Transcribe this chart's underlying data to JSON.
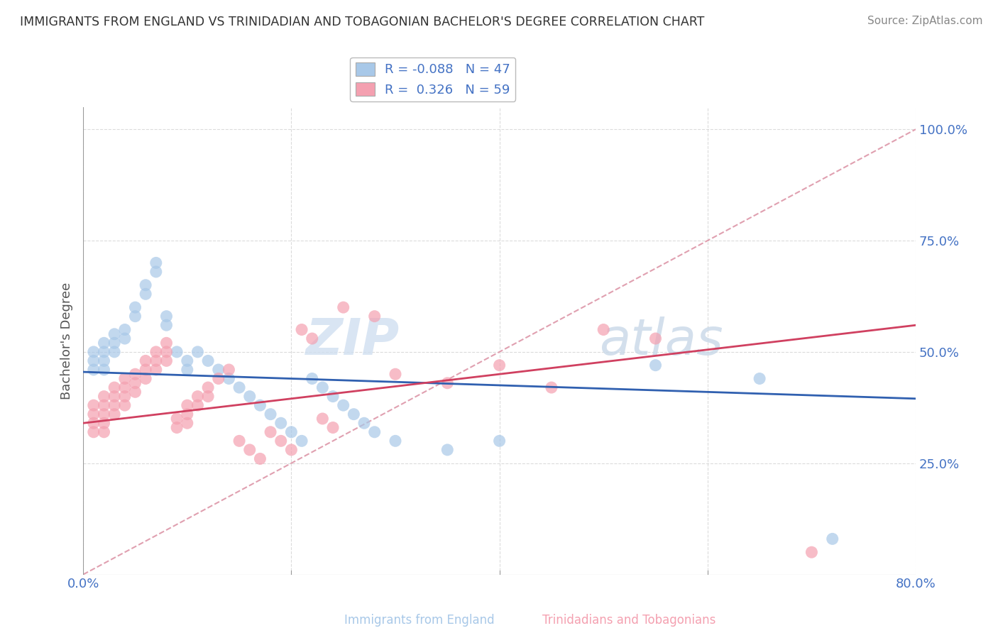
{
  "title": "IMMIGRANTS FROM ENGLAND VS TRINIDADIAN AND TOBAGONIAN BACHELOR'S DEGREE CORRELATION CHART",
  "source": "Source: ZipAtlas.com",
  "xlabel_blue": "Immigrants from England",
  "xlabel_pink": "Trinidadians and Tobagonians",
  "ylabel": "Bachelor's Degree",
  "xlim": [
    0.0,
    0.8
  ],
  "ylim": [
    0.0,
    1.05
  ],
  "R_blue": -0.088,
  "N_blue": 47,
  "R_pink": 0.326,
  "N_pink": 59,
  "blue_color": "#a8c8e8",
  "pink_color": "#f4a0b0",
  "blue_line_color": "#3060b0",
  "pink_line_color": "#d04060",
  "ref_line_color": "#e0a0b0",
  "legend_text_color": "#4472c4",
  "blue_scatter_x": [
    0.01,
    0.01,
    0.01,
    0.02,
    0.02,
    0.02,
    0.02,
    0.03,
    0.03,
    0.03,
    0.04,
    0.04,
    0.05,
    0.05,
    0.06,
    0.06,
    0.07,
    0.07,
    0.08,
    0.08,
    0.09,
    0.1,
    0.1,
    0.11,
    0.12,
    0.13,
    0.14,
    0.15,
    0.16,
    0.17,
    0.18,
    0.19,
    0.2,
    0.21,
    0.22,
    0.23,
    0.24,
    0.25,
    0.26,
    0.27,
    0.28,
    0.3,
    0.35,
    0.4,
    0.55,
    0.65,
    0.72
  ],
  "blue_scatter_y": [
    0.5,
    0.48,
    0.46,
    0.52,
    0.5,
    0.48,
    0.46,
    0.54,
    0.52,
    0.5,
    0.55,
    0.53,
    0.6,
    0.58,
    0.65,
    0.63,
    0.7,
    0.68,
    0.58,
    0.56,
    0.5,
    0.48,
    0.46,
    0.5,
    0.48,
    0.46,
    0.44,
    0.42,
    0.4,
    0.38,
    0.36,
    0.34,
    0.32,
    0.3,
    0.44,
    0.42,
    0.4,
    0.38,
    0.36,
    0.34,
    0.32,
    0.3,
    0.28,
    0.3,
    0.47,
    0.44,
    0.08
  ],
  "pink_scatter_x": [
    0.01,
    0.01,
    0.01,
    0.01,
    0.02,
    0.02,
    0.02,
    0.02,
    0.02,
    0.03,
    0.03,
    0.03,
    0.03,
    0.04,
    0.04,
    0.04,
    0.04,
    0.05,
    0.05,
    0.05,
    0.06,
    0.06,
    0.06,
    0.07,
    0.07,
    0.07,
    0.08,
    0.08,
    0.08,
    0.09,
    0.09,
    0.1,
    0.1,
    0.1,
    0.11,
    0.11,
    0.12,
    0.12,
    0.13,
    0.14,
    0.15,
    0.16,
    0.17,
    0.18,
    0.19,
    0.2,
    0.21,
    0.22,
    0.23,
    0.24,
    0.25,
    0.28,
    0.3,
    0.35,
    0.4,
    0.45,
    0.5,
    0.55,
    0.7
  ],
  "pink_scatter_y": [
    0.38,
    0.36,
    0.34,
    0.32,
    0.4,
    0.38,
    0.36,
    0.34,
    0.32,
    0.42,
    0.4,
    0.38,
    0.36,
    0.44,
    0.42,
    0.4,
    0.38,
    0.45,
    0.43,
    0.41,
    0.48,
    0.46,
    0.44,
    0.5,
    0.48,
    0.46,
    0.52,
    0.5,
    0.48,
    0.35,
    0.33,
    0.38,
    0.36,
    0.34,
    0.4,
    0.38,
    0.42,
    0.4,
    0.44,
    0.46,
    0.3,
    0.28,
    0.26,
    0.32,
    0.3,
    0.28,
    0.55,
    0.53,
    0.35,
    0.33,
    0.6,
    0.58,
    0.45,
    0.43,
    0.47,
    0.42,
    0.55,
    0.53,
    0.05
  ],
  "blue_line_x0": 0.0,
  "blue_line_x1": 0.8,
  "blue_line_y0": 0.455,
  "blue_line_y1": 0.395,
  "pink_line_x0": 0.0,
  "pink_line_x1": 0.8,
  "pink_line_y0": 0.34,
  "pink_line_y1": 0.56,
  "ref_line_x": [
    0.0,
    0.8
  ],
  "ref_line_y": [
    0.0,
    1.0
  ]
}
